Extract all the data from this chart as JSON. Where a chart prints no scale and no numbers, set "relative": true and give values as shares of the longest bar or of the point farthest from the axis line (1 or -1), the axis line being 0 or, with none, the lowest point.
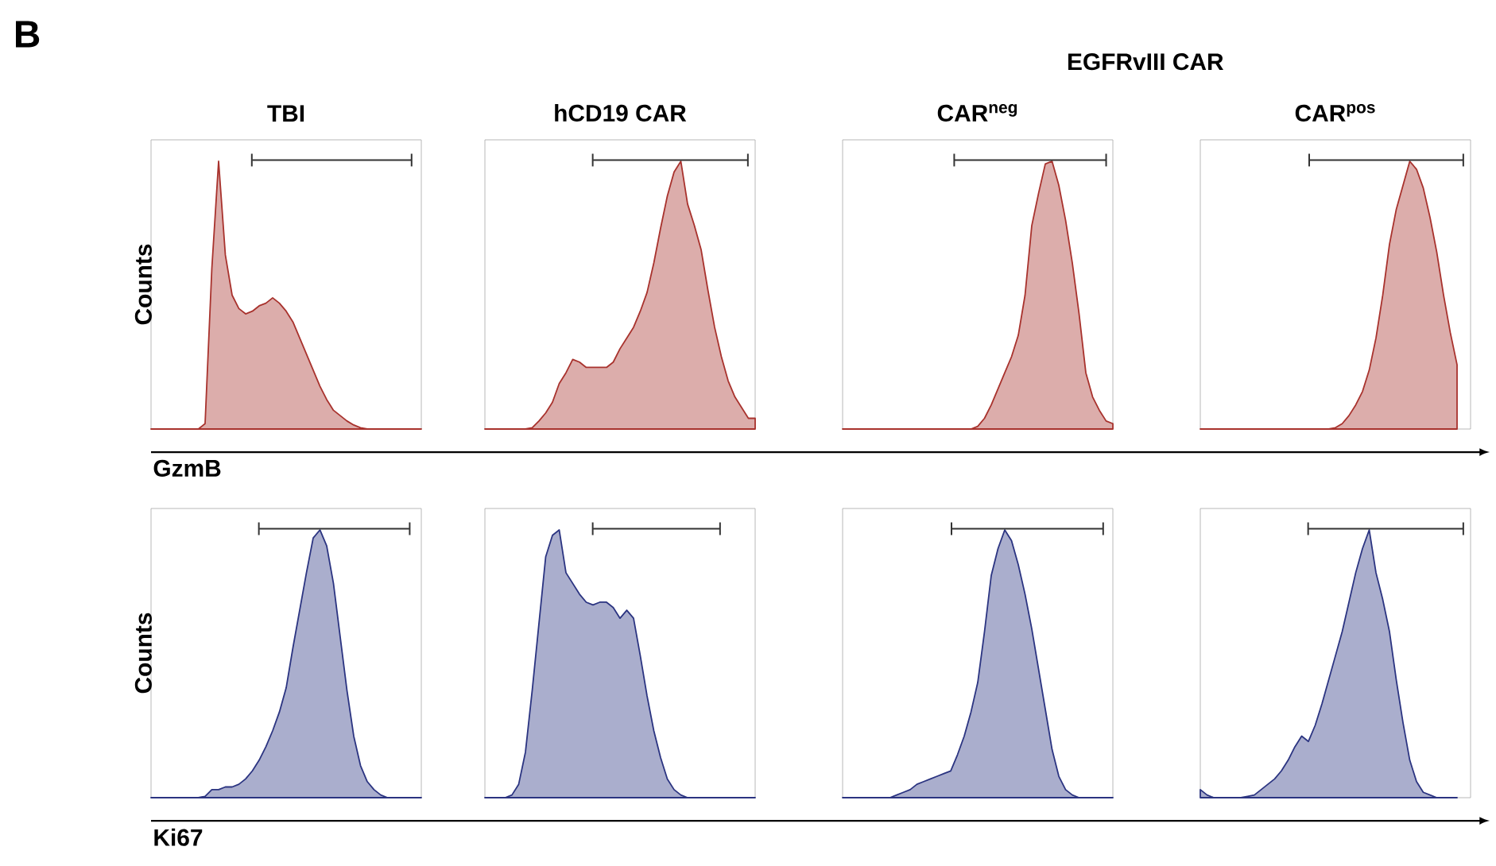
{
  "chart_data": [
    {
      "type": "area",
      "relative": true,
      "title": "TBI",
      "ylabel": "Counts",
      "xlabel": "GzmB",
      "annotations": [
        "B"
      ],
      "categories": [
        null,
        null,
        null,
        null,
        null,
        null,
        null,
        null,
        null,
        null,
        null,
        null,
        null,
        null,
        null,
        null,
        null,
        null,
        null,
        null,
        null,
        null,
        null,
        null,
        null,
        null,
        null,
        null,
        null,
        null,
        null,
        null,
        null,
        null,
        null,
        null,
        null,
        null,
        null,
        null,
        null
      ],
      "series": [
        {
          "color": "#a8322d",
          "values": [
            0,
            0,
            0,
            0,
            0,
            0,
            0,
            0,
            0.02,
            0.6,
            1,
            0.65,
            0.5,
            0.45,
            0.43,
            0.44,
            0.46,
            0.47,
            0.49,
            0.47,
            0.44,
            0.4,
            0.34,
            0.28,
            0.22,
            0.16,
            0.11,
            0.07,
            0.05,
            0.03,
            0.015,
            0.005,
            0,
            0,
            0,
            0,
            0,
            0,
            0,
            0,
            0
          ]
        }
      ]
    },
    {
      "type": "area",
      "relative": true,
      "title": "hCD19 CAR",
      "categories": [
        null,
        null,
        null,
        null,
        null,
        null,
        null,
        null,
        null,
        null,
        null,
        null,
        null,
        null,
        null,
        null,
        null,
        null,
        null,
        null,
        null,
        null,
        null,
        null,
        null,
        null,
        null,
        null,
        null,
        null,
        null,
        null,
        null,
        null,
        null,
        null,
        null,
        null,
        null,
        null,
        null
      ],
      "series": [
        {
          "color": "#a8322d",
          "values": [
            0,
            0,
            0,
            0,
            0,
            0,
            0,
            0.005,
            0.03,
            0.06,
            0.1,
            0.17,
            0.21,
            0.26,
            0.25,
            0.23,
            0.23,
            0.23,
            0.23,
            0.25,
            0.3,
            0.34,
            0.38,
            0.44,
            0.51,
            0.62,
            0.75,
            0.87,
            0.96,
            1,
            0.84,
            0.76,
            0.67,
            0.52,
            0.38,
            0.27,
            0.18,
            0.12,
            0.08,
            0.04,
            0.04
          ]
        }
      ]
    },
    {
      "type": "area",
      "relative": true,
      "title": "CAR$^{neg}$",
      "annotations": [
        "EGFRvIII CAR"
      ],
      "categories": [
        null,
        null,
        null,
        null,
        null,
        null,
        null,
        null,
        null,
        null,
        null,
        null,
        null,
        null,
        null,
        null,
        null,
        null,
        null,
        null,
        null,
        null,
        null,
        null,
        null,
        null,
        null,
        null,
        null,
        null,
        null,
        null,
        null,
        null,
        null,
        null,
        null,
        null,
        null,
        null,
        null
      ],
      "series": [
        {
          "color": "#a8322d",
          "values": [
            0,
            0,
            0,
            0,
            0,
            0,
            0,
            0,
            0,
            0,
            0,
            0,
            0,
            0,
            0,
            0,
            0,
            0,
            0,
            0,
            0.01,
            0.04,
            0.09,
            0.15,
            0.21,
            0.27,
            0.35,
            0.5,
            0.76,
            0.88,
            0.99,
            1,
            0.91,
            0.78,
            0.62,
            0.43,
            0.21,
            0.12,
            0.07,
            0.03,
            0.02
          ]
        }
      ]
    },
    {
      "type": "area",
      "relative": true,
      "title": "CAR$^{pos}$",
      "categories": [
        null,
        null,
        null,
        null,
        null,
        null,
        null,
        null,
        null,
        null,
        null,
        null,
        null,
        null,
        null,
        null,
        null,
        null,
        null,
        null,
        null,
        null,
        null,
        null,
        null,
        null,
        null,
        null,
        null,
        null,
        null,
        null,
        null,
        null,
        null,
        null,
        null,
        null,
        null,
        null,
        null
      ],
      "series": [
        {
          "color": "#a8322d",
          "values": [
            0,
            0,
            0,
            0,
            0,
            0,
            0,
            0,
            0,
            0,
            0,
            0,
            0,
            0,
            0,
            0,
            0,
            0,
            0,
            0,
            0.005,
            0.02,
            0.05,
            0.09,
            0.14,
            0.22,
            0.34,
            0.5,
            0.69,
            0.82,
            0.91,
            1,
            0.97,
            0.9,
            0.79,
            0.66,
            0.5,
            0.36,
            0.24,
            null,
            null
          ]
        }
      ]
    },
    {
      "type": "area",
      "relative": true,
      "ylabel": "Counts",
      "xlabel": "Ki67",
      "categories": [
        null,
        null,
        null,
        null,
        null,
        null,
        null,
        null,
        null,
        null,
        null,
        null,
        null,
        null,
        null,
        null,
        null,
        null,
        null,
        null,
        null,
        null,
        null,
        null,
        null,
        null,
        null,
        null,
        null,
        null,
        null,
        null,
        null,
        null,
        null,
        null,
        null,
        null,
        null,
        null,
        null
      ],
      "series": [
        {
          "color": "#2b3481",
          "values": [
            0,
            0,
            0,
            0,
            0,
            0,
            0,
            0,
            0.005,
            0.03,
            0.03,
            0.04,
            0.04,
            0.05,
            0.07,
            0.1,
            0.14,
            0.19,
            0.25,
            0.32,
            0.41,
            0.56,
            0.7,
            0.84,
            0.97,
            1,
            0.94,
            0.8,
            0.6,
            0.4,
            0.23,
            0.12,
            0.06,
            0.03,
            0.01,
            0,
            0,
            0,
            0,
            0,
            0
          ]
        }
      ]
    },
    {
      "type": "area",
      "relative": true,
      "categories": [
        null,
        null,
        null,
        null,
        null,
        null,
        null,
        null,
        null,
        null,
        null,
        null,
        null,
        null,
        null,
        null,
        null,
        null,
        null,
        null,
        null,
        null,
        null,
        null,
        null,
        null,
        null,
        null,
        null,
        null,
        null,
        null,
        null,
        null,
        null,
        null,
        null,
        null,
        null,
        null,
        null
      ],
      "series": [
        {
          "color": "#2b3481",
          "values": [
            0,
            0,
            0,
            0,
            0.01,
            0.05,
            0.17,
            0.4,
            0.65,
            0.9,
            0.98,
            1,
            0.84,
            0.8,
            0.76,
            0.73,
            0.72,
            0.73,
            0.73,
            0.71,
            0.67,
            0.7,
            0.67,
            0.53,
            0.38,
            0.25,
            0.15,
            0.07,
            0.03,
            0.01,
            0,
            0,
            0,
            0,
            0,
            0,
            0,
            0,
            0,
            0,
            0
          ]
        }
      ]
    },
    {
      "type": "area",
      "relative": true,
      "categories": [
        null,
        null,
        null,
        null,
        null,
        null,
        null,
        null,
        null,
        null,
        null,
        null,
        null,
        null,
        null,
        null,
        null,
        null,
        null,
        null,
        null,
        null,
        null,
        null,
        null,
        null,
        null,
        null,
        null,
        null,
        null,
        null,
        null,
        null,
        null,
        null,
        null,
        null,
        null,
        null,
        null
      ],
      "series": [
        {
          "color": "#2b3481",
          "values": [
            0,
            0,
            0,
            0,
            0,
            0,
            0,
            0,
            0.01,
            0.02,
            0.03,
            0.05,
            0.06,
            0.07,
            0.08,
            0.09,
            0.1,
            0.16,
            0.23,
            0.32,
            0.43,
            0.62,
            0.83,
            0.93,
            1,
            0.96,
            0.87,
            0.76,
            0.63,
            0.48,
            0.33,
            0.18,
            0.08,
            0.03,
            0.01,
            0,
            0,
            0,
            0,
            0,
            0
          ]
        }
      ]
    },
    {
      "type": "area",
      "relative": true,
      "categories": [
        null,
        null,
        null,
        null,
        null,
        null,
        null,
        null,
        null,
        null,
        null,
        null,
        null,
        null,
        null,
        null,
        null,
        null,
        null,
        null,
        null,
        null,
        null,
        null,
        null,
        null,
        null,
        null,
        null,
        null,
        null,
        null,
        null,
        null,
        null,
        null,
        null,
        null,
        null,
        null,
        null
      ],
      "series": [
        {
          "color": "#2b3481",
          "values": [
            0.03,
            0.01,
            0,
            0,
            0,
            0,
            0,
            0.005,
            0.01,
            0.03,
            0.05,
            0.07,
            0.1,
            0.14,
            0.19,
            0.23,
            0.21,
            0.27,
            0.35,
            0.44,
            0.53,
            0.62,
            0.73,
            0.84,
            0.93,
            1,
            0.84,
            0.74,
            0.62,
            0.44,
            0.28,
            0.14,
            0.06,
            0.02,
            0.01,
            0,
            0,
            0,
            0,
            null,
            null
          ]
        }
      ]
    }
  ]
}
